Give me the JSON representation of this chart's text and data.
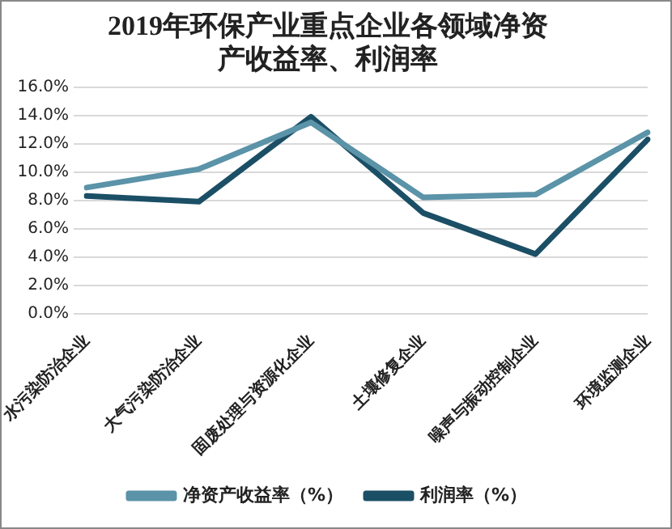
{
  "chart_data": {
    "type": "line",
    "title": "2019年环保产业重点企业各领域净资产收益率、利润率",
    "categories": [
      "水污染防治企业",
      "大气污染防治企业",
      "固废处理与资源化企业",
      "土壤修复企业",
      "噪声与振动控制企业",
      "环境监测企业"
    ],
    "series": [
      {
        "name": "净资产收益率（%）",
        "color": "#5b93a8",
        "values": [
          8.9,
          10.2,
          13.5,
          8.2,
          8.4,
          12.8
        ]
      },
      {
        "name": "利润率（%）",
        "color": "#1b4f66",
        "values": [
          8.3,
          7.9,
          13.9,
          7.1,
          4.2,
          12.3
        ]
      }
    ],
    "ylim": [
      0,
      16
    ],
    "yticks": [
      {
        "value": 0,
        "label": "0.0%"
      },
      {
        "value": 2,
        "label": "2.0%"
      },
      {
        "value": 4,
        "label": "4.0%"
      },
      {
        "value": 6,
        "label": "6.0%"
      },
      {
        "value": 8,
        "label": "8.0%"
      },
      {
        "value": 10,
        "label": "10.0%"
      },
      {
        "value": 12,
        "label": "12.0%"
      },
      {
        "value": 14,
        "label": "14.0%"
      },
      {
        "value": 16,
        "label": "16.0%"
      }
    ],
    "grid": "y",
    "legend": "bottom",
    "marker": "none",
    "line_style": "solid"
  }
}
